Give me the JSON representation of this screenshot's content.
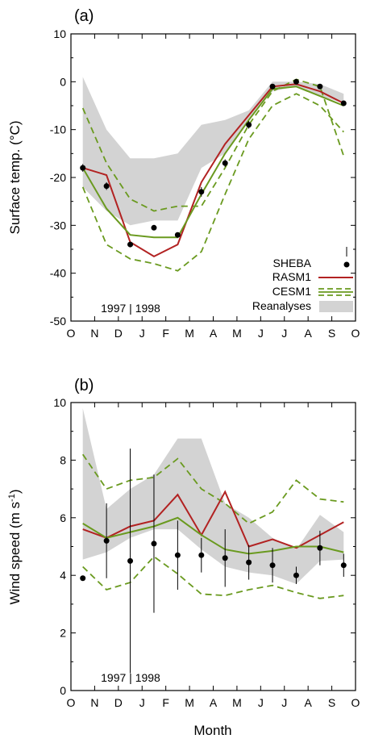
{
  "colors": {
    "sheba": "#000000",
    "rasm": "#b22222",
    "cesm": "#6a9a1f",
    "reanalyses": "#d3d3d3",
    "axis": "#000000"
  },
  "x_tick_labels": [
    "O",
    "N",
    "D",
    "J",
    "F",
    "M",
    "A",
    "M",
    "J",
    "J",
    "A",
    "S",
    "O"
  ],
  "chart_data": [
    {
      "type": "line",
      "panel_label": "(a)",
      "title": "",
      "xlabel": "",
      "ylabel": "Surface temp. (°C)",
      "ylim": [
        -50,
        10
      ],
      "yticks": [
        -50,
        -40,
        -30,
        -20,
        -10,
        0,
        10
      ],
      "xlim": [
        0,
        12
      ],
      "period_label": "1997 | 1998",
      "legend": {
        "position": "bottom-right",
        "entries": [
          "SHEBA",
          "RASM1",
          "CESM1",
          "Reanalyses"
        ]
      },
      "x": [
        0.5,
        1.5,
        2.5,
        3.5,
        4.5,
        5.5,
        6.5,
        7.5,
        8.5,
        9.5,
        10.5,
        11.5
      ],
      "series": [
        {
          "name": "SHEBA",
          "kind": "points",
          "values": [
            -18,
            -21.8,
            -34,
            -30.5,
            -32,
            -23,
            -17,
            -9,
            -1,
            0,
            -1,
            -4.5
          ],
          "error": [
            0.8,
            0.8,
            0.5,
            0.5,
            0.5,
            1.0,
            0.8,
            0.8,
            0.5,
            0.5,
            0.5,
            0.5
          ]
        },
        {
          "name": "RASM1",
          "kind": "line",
          "values": [
            -18,
            -19.5,
            -33.5,
            -36.5,
            -34,
            -21,
            -13,
            -7,
            -1,
            -0.5,
            -2,
            -4.5
          ]
        },
        {
          "name": "CESM1",
          "kind": "line",
          "values": [
            -18,
            -26.5,
            -32,
            -32.5,
            -32.5,
            -23.5,
            -15,
            -8,
            -1.5,
            -1,
            -3,
            -5
          ]
        },
        {
          "name": "CESM1 upper",
          "kind": "dashed",
          "values": [
            -5.5,
            -17,
            -24.5,
            -27,
            -26,
            -26,
            -18,
            -9,
            -2,
            0.5,
            -1,
            -15.5
          ]
        },
        {
          "name": "CESM1 lower",
          "kind": "dashed",
          "values": [
            -22,
            -34,
            -37,
            -38,
            -39.5,
            -35.5,
            -23.5,
            -12,
            -5,
            -2.5,
            -5,
            -10.5
          ]
        },
        {
          "name": "Reanalyses",
          "kind": "band",
          "upper": [
            1,
            -10,
            -16,
            -16,
            -15,
            -9,
            -8,
            -6,
            0,
            0,
            -0.5,
            -2.5
          ],
          "lower": [
            -22,
            -27,
            -30,
            -29,
            -29,
            -18,
            -15,
            -8,
            -2,
            -1,
            -3,
            -4.5
          ]
        }
      ]
    },
    {
      "type": "line",
      "panel_label": "(b)",
      "title": "",
      "xlabel": "Month",
      "ylabel": "Wind speed (m s-1)",
      "ylabel_main": "Wind speed (m s",
      "ylabel_sup": "-1",
      "ylabel_end": ")",
      "ylim": [
        0,
        10
      ],
      "yticks": [
        0,
        2,
        4,
        6,
        8,
        10
      ],
      "xlim": [
        0,
        12
      ],
      "period_label": "1997 | 1998",
      "x": [
        0.5,
        1.5,
        2.5,
        3.5,
        4.5,
        5.5,
        6.5,
        7.5,
        8.5,
        9.5,
        10.5,
        11.5
      ],
      "series": [
        {
          "name": "SHEBA",
          "kind": "points",
          "values": [
            3.9,
            5.2,
            4.5,
            5.1,
            4.7,
            4.7,
            4.6,
            4.45,
            4.35,
            4.0,
            4.95,
            4.35
          ],
          "error": [
            0.05,
            1.3,
            3.9,
            2.4,
            1.2,
            0.6,
            1.0,
            0.6,
            0.6,
            0.3,
            0.6,
            0.4
          ]
        },
        {
          "name": "RASM1",
          "kind": "line",
          "values": [
            5.6,
            5.3,
            5.7,
            5.9,
            6.8,
            5.4,
            6.9,
            5.0,
            5.25,
            4.95,
            5.4,
            5.85
          ]
        },
        {
          "name": "CESM1",
          "kind": "line",
          "values": [
            5.8,
            5.3,
            5.5,
            5.7,
            6.0,
            5.4,
            4.9,
            4.75,
            4.85,
            5.0,
            5.0,
            4.8
          ]
        },
        {
          "name": "CESM1 upper",
          "kind": "dashed",
          "values": [
            8.2,
            7.0,
            7.3,
            7.4,
            8.05,
            7.0,
            6.5,
            5.8,
            6.2,
            7.3,
            6.65,
            6.55
          ]
        },
        {
          "name": "CESM1 lower",
          "kind": "dashed",
          "values": [
            4.3,
            3.5,
            3.75,
            4.65,
            4.05,
            3.35,
            3.3,
            3.5,
            3.65,
            3.4,
            3.2,
            3.3
          ]
        },
        {
          "name": "Reanalyses",
          "kind": "band",
          "upper": [
            9.8,
            6.3,
            7.0,
            7.5,
            8.75,
            8.75,
            6.5,
            6.0,
            5.3,
            4.9,
            6.1,
            5.5
          ],
          "lower": [
            4.55,
            4.8,
            5.3,
            5.6,
            5.6,
            4.9,
            4.3,
            4.1,
            4.0,
            3.7,
            4.5,
            4.55
          ]
        }
      ]
    }
  ]
}
